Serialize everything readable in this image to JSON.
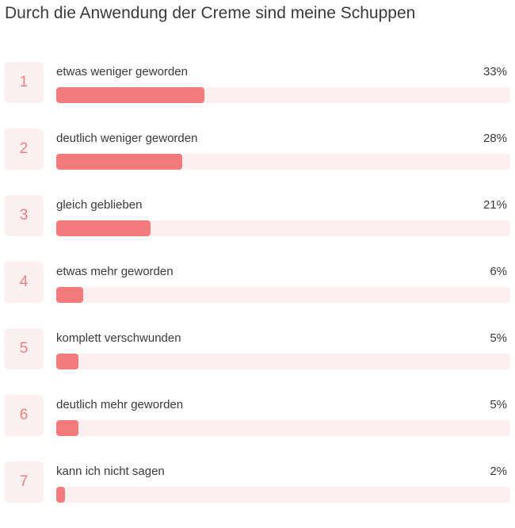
{
  "colors": {
    "bar_fill": "#f47b7b",
    "bar_track": "#fdefef",
    "rank_bg": "#fdf0f0",
    "rank_text": "#f08080"
  },
  "chart_data": {
    "type": "bar",
    "orientation": "horizontal",
    "title": "Durch die Anwendung der Creme sind meine Schuppen",
    "xlabel": "",
    "ylabel": "",
    "xlim": [
      0,
      100
    ],
    "grid": false,
    "categories": [
      "etwas weniger geworden",
      "deutlich weniger geworden",
      "gleich geblieben",
      "etwas mehr geworden",
      "komplett verschwunden",
      "deutlich mehr geworden",
      "kann ich nicht sagen"
    ],
    "values": [
      33,
      28,
      21,
      6,
      5,
      5,
      2
    ],
    "ranks": [
      "1",
      "2",
      "3",
      "4",
      "5",
      "6",
      "7"
    ],
    "value_labels": [
      "33%",
      "28%",
      "21%",
      "6%",
      "5%",
      "5%",
      "2%"
    ]
  }
}
